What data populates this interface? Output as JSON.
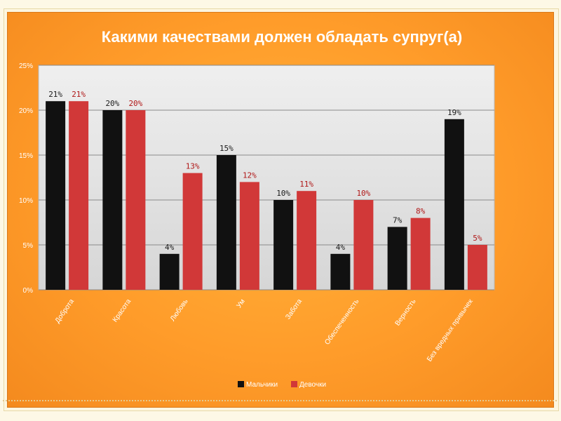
{
  "chart_data": {
    "type": "bar",
    "title": "Какими качествами должен обладать супруг(а)",
    "categories": [
      "Доброта",
      "Красота",
      "Любовь",
      "Ум",
      "Забота",
      "Обеспеченность",
      "Верность",
      "Без вредных привычек"
    ],
    "series": [
      {
        "name": "Мальчики",
        "color": "#111111",
        "values": [
          21,
          20,
          4,
          15,
          10,
          4,
          7,
          19
        ],
        "labels": [
          "21%",
          "20%",
          "4%",
          "15%",
          "10%",
          "4%",
          "7%",
          "19%"
        ]
      },
      {
        "name": "Девочки",
        "color": "#d13838",
        "values": [
          21,
          20,
          13,
          12,
          11,
          10,
          8,
          5
        ],
        "labels": [
          "21%",
          "20%",
          "13%",
          "12%",
          "11%",
          "10%",
          "8%",
          "5%"
        ]
      }
    ],
    "yticks": [
      "0%",
      "5%",
      "10%",
      "15%",
      "20%",
      "25%"
    ],
    "ylim": [
      0,
      25
    ],
    "xlabel": "",
    "ylabel": "",
    "grid": true,
    "legend": "bottom"
  }
}
